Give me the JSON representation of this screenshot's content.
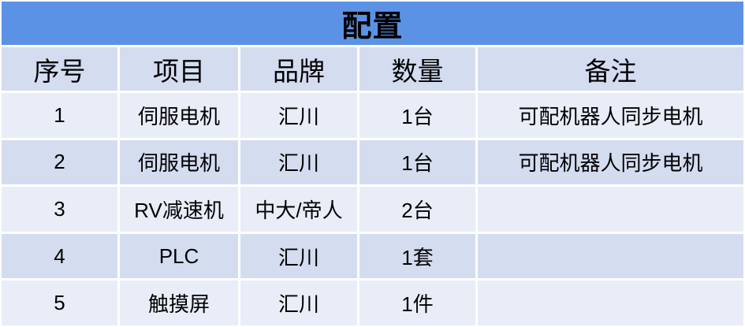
{
  "table": {
    "title": "配置",
    "columns": [
      "序号",
      "项目",
      "品牌",
      "数量",
      "备注"
    ],
    "rows": [
      [
        "1",
        "伺服电机",
        "汇川",
        "1台",
        "可配机器人同步电机"
      ],
      [
        "2",
        "伺服电机",
        "汇川",
        "1台",
        "可配机器人同步电机"
      ],
      [
        "3",
        "RV减速机",
        "中大/帝人",
        "2台",
        ""
      ],
      [
        "4",
        "PLC",
        "汇川",
        "1套",
        ""
      ],
      [
        "5",
        "触摸屏",
        "汇川",
        "1件",
        ""
      ]
    ]
  },
  "colors": {
    "title_bg": "#5B92E5",
    "band_dark": "#D4DCF0",
    "band_light": "#E9EDF8",
    "grid_line": "#FFFFFF",
    "text": "#000000"
  }
}
